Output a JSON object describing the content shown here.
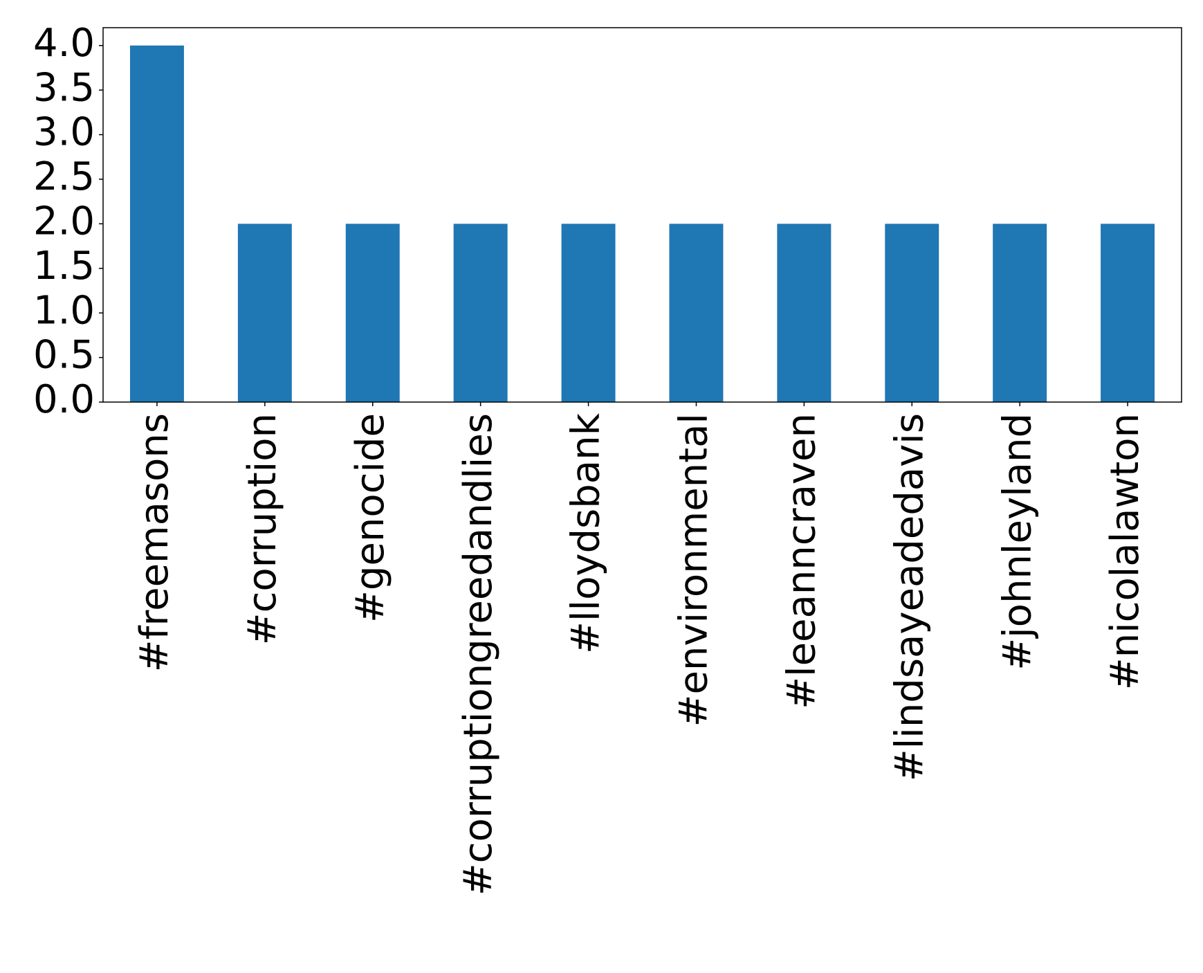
{
  "chart_data": {
    "type": "bar",
    "categories": [
      "#freemasons",
      "#corruption",
      "#genocide",
      "#corruptiongreedandlies",
      "#lloydsbank",
      "#environmental",
      "#leeanncraven",
      "#lindsayeadedavis",
      "#johnleyland",
      "#nicolalawton"
    ],
    "values": [
      4,
      2,
      2,
      2,
      2,
      2,
      2,
      2,
      2,
      2
    ],
    "color": "#1f77b4",
    "ylim": [
      0,
      4.2
    ],
    "yticks": [
      {
        "value": 0,
        "label": "0.0"
      },
      0.5,
      {
        "value": 1,
        "label": "1.0"
      },
      1.5,
      {
        "value": 2,
        "label": "2.0"
      },
      2.5,
      {
        "value": 3,
        "label": "3.0"
      },
      3.5,
      {
        "value": 4,
        "label": "4.0"
      }
    ],
    "grid": false
  }
}
